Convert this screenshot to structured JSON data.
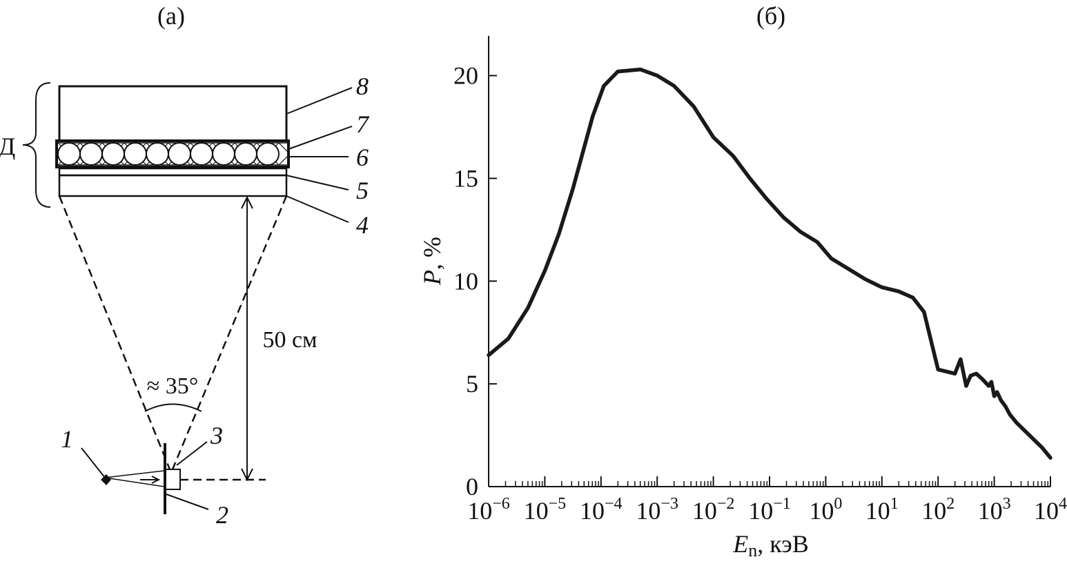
{
  "panel_a": {
    "label": "(a)",
    "detector_label": "Д",
    "parts": [
      "8",
      "7",
      "6",
      "5",
      "4",
      "1",
      "2",
      "3"
    ],
    "distance_label": "50 см",
    "angle_label": "≈ 35°"
  },
  "panel_b": {
    "label": "(б)"
  },
  "chart_data": {
    "type": "line",
    "title": "",
    "xlabel": "E",
    "xlabel_sub": "n",
    "xlabel_unit": ", кэВ",
    "ylabel": "P",
    "ylabel_unit": ", %",
    "xscale": "log",
    "xlim_exp": [
      -6,
      4
    ],
    "ylim": [
      0,
      22
    ],
    "xticks": [
      {
        "b": "10",
        "e": "−6"
      },
      {
        "b": "10",
        "e": "−5"
      },
      {
        "b": "10",
        "e": "−4"
      },
      {
        "b": "10",
        "e": "−3"
      },
      {
        "b": "10",
        "e": "−2"
      },
      {
        "b": "10",
        "e": "−1"
      },
      {
        "b": "10",
        "e": "0"
      },
      {
        "b": "10",
        "e": "1"
      },
      {
        "b": "10",
        "e": "2"
      },
      {
        "b": "10",
        "e": "3"
      },
      {
        "b": "10",
        "e": "4"
      }
    ],
    "yticks": [
      "0",
      "5",
      "10",
      "15",
      "20"
    ],
    "grid": false,
    "series": [
      {
        "name": "",
        "points": [
          [
            -6.0,
            6.4
          ],
          [
            -5.65,
            7.2
          ],
          [
            -5.3,
            8.7
          ],
          [
            -5.0,
            10.5
          ],
          [
            -4.75,
            12.3
          ],
          [
            -4.5,
            14.5
          ],
          [
            -4.35,
            16.0
          ],
          [
            -4.15,
            18.0
          ],
          [
            -3.95,
            19.5
          ],
          [
            -3.7,
            20.2
          ],
          [
            -3.3,
            20.3
          ],
          [
            -3.0,
            20.0
          ],
          [
            -2.7,
            19.5
          ],
          [
            -2.35,
            18.5
          ],
          [
            -2.0,
            17.0
          ],
          [
            -1.65,
            16.1
          ],
          [
            -1.35,
            15.0
          ],
          [
            -1.05,
            14.0
          ],
          [
            -0.75,
            13.1
          ],
          [
            -0.45,
            12.4
          ],
          [
            -0.15,
            11.9
          ],
          [
            0.1,
            11.1
          ],
          [
            0.4,
            10.6
          ],
          [
            0.7,
            10.1
          ],
          [
            1.0,
            9.7
          ],
          [
            1.3,
            9.5
          ],
          [
            1.55,
            9.2
          ],
          [
            1.75,
            8.5
          ],
          [
            2.0,
            5.7
          ],
          [
            2.3,
            5.5
          ],
          [
            2.4,
            6.2
          ],
          [
            2.5,
            4.9
          ],
          [
            2.58,
            5.4
          ],
          [
            2.68,
            5.5
          ],
          [
            2.8,
            5.2
          ],
          [
            2.9,
            4.9
          ],
          [
            2.95,
            5.1
          ],
          [
            3.0,
            4.4
          ],
          [
            3.05,
            4.6
          ],
          [
            3.12,
            4.2
          ],
          [
            3.2,
            3.9
          ],
          [
            3.28,
            3.5
          ],
          [
            3.4,
            3.1
          ],
          [
            3.55,
            2.7
          ],
          [
            3.7,
            2.3
          ],
          [
            3.85,
            1.9
          ],
          [
            4.0,
            1.4
          ]
        ]
      }
    ]
  }
}
